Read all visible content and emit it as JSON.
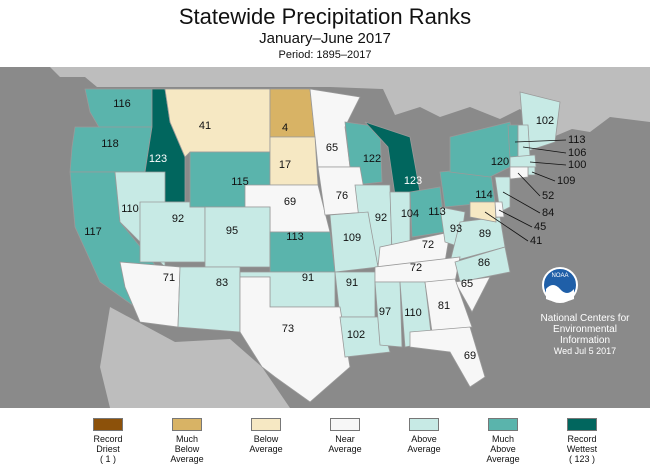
{
  "title": "Statewide Precipitation Ranks",
  "subtitle": "January–June 2017",
  "period": "Period: 1895–2017",
  "colors": {
    "record_driest": "#8c510a",
    "much_below": "#d8b365",
    "below": "#f6e8c3",
    "near": "#f7f7f7",
    "above": "#c7eae5",
    "much_above": "#5ab4ac",
    "record_wettest": "#01665e",
    "ocean": "#8a8a8a",
    "land_other": "#bdbdbd",
    "border": "#9a9a9a"
  },
  "states": [
    {
      "abbr": "WA",
      "rank": 116,
      "category": "much_above"
    },
    {
      "abbr": "OR",
      "rank": 118,
      "category": "much_above"
    },
    {
      "abbr": "ID",
      "rank": 123,
      "category": "record_wettest"
    },
    {
      "abbr": "MT",
      "rank": 41,
      "category": "below"
    },
    {
      "abbr": "ND",
      "rank": 4,
      "category": "much_below"
    },
    {
      "abbr": "MN",
      "rank": 65,
      "category": "near"
    },
    {
      "abbr": "WI",
      "rank": 122,
      "category": "much_above"
    },
    {
      "abbr": "MI",
      "rank": 123,
      "category": "record_wettest"
    },
    {
      "abbr": "CA",
      "rank": 117,
      "category": "much_above"
    },
    {
      "abbr": "NV",
      "rank": 110,
      "category": "above"
    },
    {
      "abbr": "UT",
      "rank": 92,
      "category": "above"
    },
    {
      "abbr": "WY",
      "rank": 115,
      "category": "much_above"
    },
    {
      "abbr": "SD",
      "rank": 17,
      "category": "below"
    },
    {
      "abbr": "NE",
      "rank": 69,
      "category": "near"
    },
    {
      "abbr": "IA",
      "rank": 76,
      "category": "near"
    },
    {
      "abbr": "IL",
      "rank": 92,
      "category": "above"
    },
    {
      "abbr": "IN",
      "rank": 104,
      "category": "above"
    },
    {
      "abbr": "OH",
      "rank": 113,
      "category": "much_above"
    },
    {
      "abbr": "PA",
      "rank": 114,
      "category": "much_above"
    },
    {
      "abbr": "NY",
      "rank": 120,
      "category": "much_above"
    },
    {
      "abbr": "ME",
      "rank": 102,
      "category": "above"
    },
    {
      "abbr": "CO",
      "rank": 95,
      "category": "above"
    },
    {
      "abbr": "KS",
      "rank": 113,
      "category": "much_above"
    },
    {
      "abbr": "MO",
      "rank": 109,
      "category": "above"
    },
    {
      "abbr": "KY",
      "rank": 72,
      "category": "near"
    },
    {
      "abbr": "WV",
      "rank": 93,
      "category": "above"
    },
    {
      "abbr": "VA",
      "rank": 89,
      "category": "above"
    },
    {
      "abbr": "AZ",
      "rank": 71,
      "category": "near"
    },
    {
      "abbr": "NM",
      "rank": 83,
      "category": "above"
    },
    {
      "abbr": "OK",
      "rank": 91,
      "category": "above"
    },
    {
      "abbr": "AR",
      "rank": 91,
      "category": "above"
    },
    {
      "abbr": "TN",
      "rank": 72,
      "category": "near"
    },
    {
      "abbr": "NC",
      "rank": 86,
      "category": "above"
    },
    {
      "abbr": "SC",
      "rank": 65,
      "category": "near"
    },
    {
      "abbr": "TX",
      "rank": 73,
      "category": "near"
    },
    {
      "abbr": "LA",
      "rank": 102,
      "category": "above"
    },
    {
      "abbr": "MS",
      "rank": 97,
      "category": "above"
    },
    {
      "abbr": "AL",
      "rank": 110,
      "category": "above"
    },
    {
      "abbr": "GA",
      "rank": 81,
      "category": "near"
    },
    {
      "abbr": "FL",
      "rank": 69,
      "category": "near"
    },
    {
      "abbr": "VT",
      "rank": 113,
      "category": "much_above"
    },
    {
      "abbr": "NH",
      "rank": 106,
      "category": "above"
    },
    {
      "abbr": "MA",
      "rank": 100,
      "category": "above"
    },
    {
      "abbr": "RI",
      "rank": 109,
      "category": "above"
    },
    {
      "abbr": "CT",
      "rank": 52,
      "category": "near"
    },
    {
      "abbr": "NJ",
      "rank": 84,
      "category": "above"
    },
    {
      "abbr": "DE",
      "rank": 45,
      "category": "near"
    },
    {
      "abbr": "MD",
      "rank": 41,
      "category": "below"
    }
  ],
  "noaa": {
    "logo_text": "NOAA",
    "line1": "National Centers for",
    "line2": "Environmental",
    "line3": "Information",
    "date": "Wed Jul  5 2017"
  },
  "legend": [
    {
      "key": "record_driest",
      "label_lines": [
        "Record",
        "Driest",
        "( 1 )"
      ]
    },
    {
      "key": "much_below",
      "label_lines": [
        "Much",
        "Below",
        "Average"
      ]
    },
    {
      "key": "below",
      "label_lines": [
        "Below",
        "Average"
      ]
    },
    {
      "key": "near",
      "label_lines": [
        "Near",
        "Average"
      ]
    },
    {
      "key": "above",
      "label_lines": [
        "Above",
        "Average"
      ]
    },
    {
      "key": "much_above",
      "label_lines": [
        "Much",
        "Above",
        "Average"
      ]
    },
    {
      "key": "record_wettest",
      "label_lines": [
        "Record",
        "Wettest",
        "( 123 )"
      ]
    }
  ]
}
